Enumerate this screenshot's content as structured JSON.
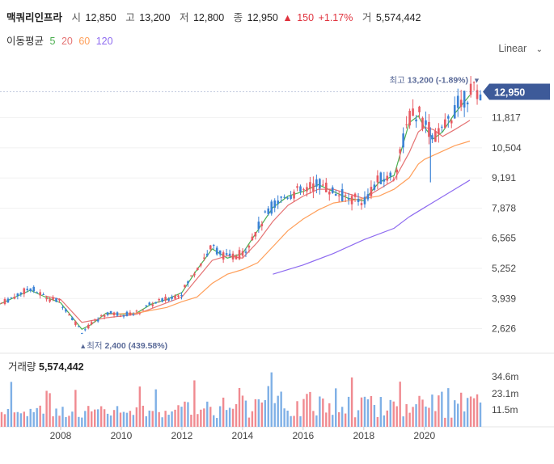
{
  "header": {
    "name": "맥쿼리인프라",
    "open_label": "시",
    "open": "12,850",
    "high_label": "고",
    "high": "13,200",
    "low_label": "저",
    "low": "12,800",
    "close_label": "종",
    "close": "12,950",
    "change_icon": "up-triangle",
    "change": "150",
    "change_pct": "+1.17%",
    "volume_label": "거",
    "volume": "5,574,442"
  },
  "ma_legend": {
    "label": "이동평균",
    "items": [
      {
        "label": "5",
        "color": "#4caf50"
      },
      {
        "label": "20",
        "color": "#e57373"
      },
      {
        "label": "60",
        "color": "#ff9f5a"
      },
      {
        "label": "120",
        "color": "#8e6bf0"
      }
    ]
  },
  "scale_select": {
    "value": "Linear"
  },
  "volume_panel": {
    "label": "거래량",
    "value": "5,574,442"
  },
  "markers": {
    "high": {
      "label": "최고",
      "value": "13,200 (-1.89%)"
    },
    "low": {
      "label": "최저",
      "value": "2,400 (439.58%)"
    },
    "current": "12,950"
  },
  "colors": {
    "up": "#e85a62",
    "down": "#3b82d6",
    "vol_up": "#f08a90",
    "vol_down": "#7fb0e6",
    "badge": "#3d5a99"
  },
  "chart_data": {
    "type": "candlestick",
    "price_axis": {
      "ticks": [
        "11,817",
        "10,504",
        "9,191",
        "7,878",
        "6,565",
        "5,252",
        "3,939",
        "2,626"
      ],
      "range": [
        1800,
        13600
      ]
    },
    "volume_axis": {
      "ticks": [
        "34.6m",
        "23.1m",
        "11.5m"
      ]
    },
    "x_axis": {
      "ticks": [
        "2008",
        "2010",
        "2012",
        "2014",
        "2016",
        "2018",
        "2020"
      ]
    },
    "price_path": [
      [
        2006.0,
        3700
      ],
      [
        2007.0,
        4400
      ],
      [
        2007.5,
        4000
      ],
      [
        2008.0,
        3800
      ],
      [
        2008.7,
        2500
      ],
      [
        2009.0,
        2800
      ],
      [
        2009.5,
        3300
      ],
      [
        2010.0,
        3250
      ],
      [
        2010.5,
        3300
      ],
      [
        2011.0,
        3700
      ],
      [
        2011.5,
        3900
      ],
      [
        2012.0,
        4200
      ],
      [
        2012.5,
        5300
      ],
      [
        2013.0,
        6200
      ],
      [
        2013.5,
        5700
      ],
      [
        2014.0,
        5900
      ],
      [
        2014.5,
        7000
      ],
      [
        2015.0,
        8000
      ],
      [
        2015.5,
        8500
      ],
      [
        2016.0,
        8600
      ],
      [
        2016.5,
        9000
      ],
      [
        2017.0,
        8600
      ],
      [
        2017.5,
        8300
      ],
      [
        2018.0,
        8200
      ],
      [
        2018.5,
        9100
      ],
      [
        2019.0,
        9300
      ],
      [
        2019.5,
        11800
      ],
      [
        2019.8,
        12000
      ],
      [
        2020.0,
        11600
      ],
      [
        2020.3,
        11000
      ],
      [
        2020.6,
        11200
      ],
      [
        2021.0,
        12200
      ],
      [
        2021.5,
        12950
      ]
    ],
    "ma": {
      "5": [
        [
          2006.0,
          3700
        ],
        [
          2007.0,
          4300
        ],
        [
          2007.5,
          4000
        ],
        [
          2008.0,
          3750
        ],
        [
          2008.7,
          2600
        ],
        [
          2009.0,
          2800
        ],
        [
          2009.5,
          3300
        ],
        [
          2010.0,
          3250
        ],
        [
          2010.5,
          3300
        ],
        [
          2011.0,
          3700
        ],
        [
          2011.5,
          3900
        ],
        [
          2012.0,
          4200
        ],
        [
          2012.5,
          5200
        ],
        [
          2013.0,
          6100
        ],
        [
          2013.5,
          5700
        ],
        [
          2014.0,
          5900
        ],
        [
          2014.5,
          6900
        ],
        [
          2015.0,
          7900
        ],
        [
          2015.5,
          8400
        ],
        [
          2016.0,
          8600
        ],
        [
          2016.5,
          8900
        ],
        [
          2017.0,
          8600
        ],
        [
          2017.5,
          8300
        ],
        [
          2018.0,
          8200
        ],
        [
          2018.5,
          9000
        ],
        [
          2019.0,
          9300
        ],
        [
          2019.5,
          11600
        ],
        [
          2019.8,
          11900
        ],
        [
          2020.0,
          11400
        ],
        [
          2020.3,
          10900
        ],
        [
          2020.6,
          11200
        ],
        [
          2021.0,
          12000
        ],
        [
          2021.5,
          12800
        ]
      ],
      "20": [
        [
          2007.5,
          4050
        ],
        [
          2008.0,
          3900
        ],
        [
          2008.7,
          2900
        ],
        [
          2009.5,
          3100
        ],
        [
          2010.5,
          3250
        ],
        [
          2011.5,
          3750
        ],
        [
          2012.0,
          4000
        ],
        [
          2012.5,
          4800
        ],
        [
          2013.0,
          5600
        ],
        [
          2013.5,
          5800
        ],
        [
          2014.0,
          5700
        ],
        [
          2014.5,
          6400
        ],
        [
          2015.0,
          7300
        ],
        [
          2015.5,
          8000
        ],
        [
          2016.0,
          8400
        ],
        [
          2016.5,
          8700
        ],
        [
          2017.0,
          8700
        ],
        [
          2017.5,
          8500
        ],
        [
          2018.0,
          8300
        ],
        [
          2018.5,
          8700
        ],
        [
          2019.0,
          9100
        ],
        [
          2019.5,
          10300
        ],
        [
          2019.8,
          11200
        ],
        [
          2020.0,
          11400
        ],
        [
          2020.3,
          11300
        ],
        [
          2020.6,
          11000
        ],
        [
          2021.0,
          11300
        ],
        [
          2021.5,
          11700
        ]
      ],
      "60": [
        [
          2009.5,
          3250
        ],
        [
          2010.5,
          3300
        ],
        [
          2011.5,
          3550
        ],
        [
          2012.0,
          3800
        ],
        [
          2012.5,
          4000
        ],
        [
          2013.0,
          4600
        ],
        [
          2013.5,
          5000
        ],
        [
          2014.0,
          5200
        ],
        [
          2014.5,
          5500
        ],
        [
          2015.0,
          6200
        ],
        [
          2015.5,
          6900
        ],
        [
          2016.0,
          7400
        ],
        [
          2016.5,
          7800
        ],
        [
          2017.0,
          8100
        ],
        [
          2017.5,
          8200
        ],
        [
          2018.0,
          8300
        ],
        [
          2018.5,
          8400
        ],
        [
          2019.0,
          8700
        ],
        [
          2019.5,
          9200
        ],
        [
          2019.8,
          9800
        ],
        [
          2020.0,
          10000
        ],
        [
          2020.5,
          10300
        ],
        [
          2021.0,
          10600
        ],
        [
          2021.5,
          10800
        ]
      ],
      "120": [
        [
          2015.0,
          5000
        ],
        [
          2016.0,
          5400
        ],
        [
          2017.0,
          5900
        ],
        [
          2018.0,
          6500
        ],
        [
          2019.0,
          7000
        ],
        [
          2019.5,
          7500
        ],
        [
          2020.0,
          7900
        ],
        [
          2020.5,
          8300
        ],
        [
          2021.0,
          8700
        ],
        [
          2021.5,
          9100
        ]
      ]
    }
  }
}
